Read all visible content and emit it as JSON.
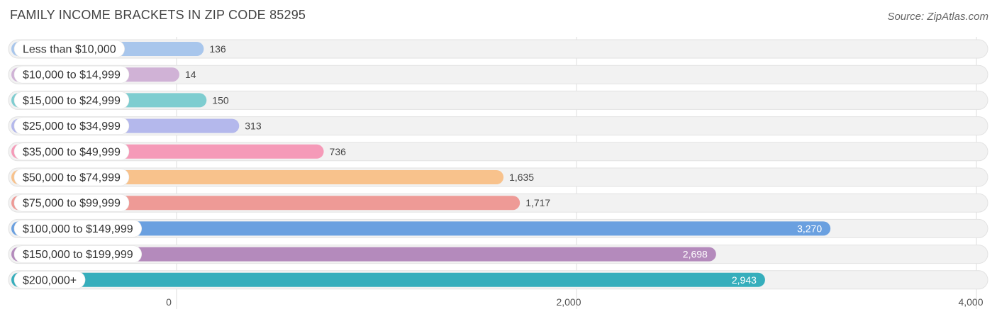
{
  "header": {
    "title": "FAMILY INCOME BRACKETS IN ZIP CODE 85295",
    "source": "Source: ZipAtlas.com"
  },
  "chart_data": {
    "type": "bar",
    "orientation": "horizontal",
    "title": "FAMILY INCOME BRACKETS IN ZIP CODE 85295",
    "categories": [
      "Less than $10,000",
      "$10,000 to $14,999",
      "$15,000 to $24,999",
      "$25,000 to $34,999",
      "$35,000 to $49,999",
      "$50,000 to $74,999",
      "$75,000 to $99,999",
      "$100,000 to $149,999",
      "$150,000 to $199,999",
      "$200,000+"
    ],
    "values": [
      136,
      14,
      150,
      313,
      736,
      1635,
      1717,
      3270,
      2698,
      2943
    ],
    "value_labels": [
      "136",
      "14",
      "150",
      "313",
      "736",
      "1,635",
      "1,717",
      "3,270",
      "2,698",
      "2,943"
    ],
    "colors": [
      "#a8c6ec",
      "#d0b2d6",
      "#7ecdd0",
      "#b4b8ec",
      "#f59ab8",
      "#f8c28c",
      "#ee9a96",
      "#6aa0e0",
      "#b48abc",
      "#36aebc"
    ],
    "xlim": [
      0,
      4000
    ],
    "xticks": [
      0,
      2000,
      4000
    ],
    "xtick_labels": [
      "0",
      "2,000",
      "4,000"
    ],
    "grid": true
  }
}
